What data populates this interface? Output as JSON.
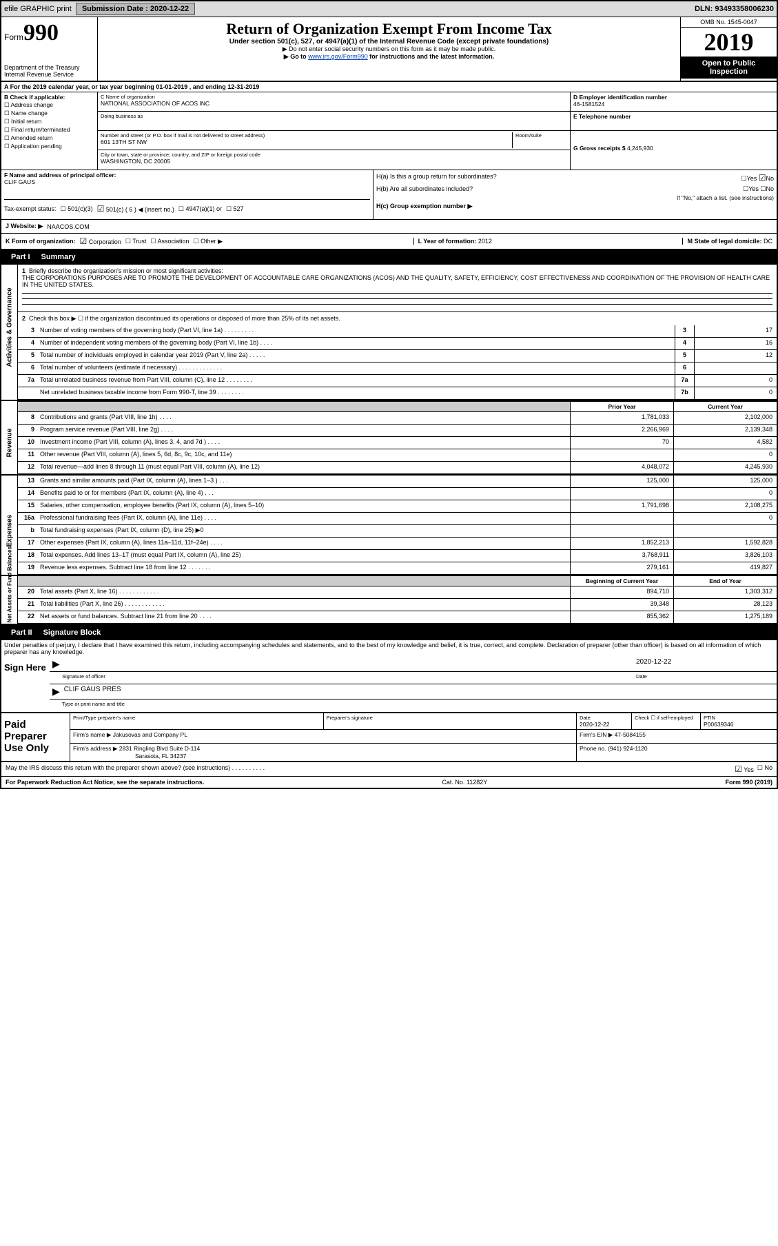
{
  "topbar": {
    "efile": "efile GRAPHIC print",
    "sub_label": "Submission Date : ",
    "sub_date": "2020-12-22",
    "dln_label": "DLN: ",
    "dln": "93493358006230"
  },
  "header": {
    "form_small": "Form",
    "form_num": "990",
    "dept1": "Department of the Treasury",
    "dept2": "Internal Revenue Service",
    "title": "Return of Organization Exempt From Income Tax",
    "sub1": "Under section 501(c), 527, or 4947(a)(1) of the Internal Revenue Code (except private foundations)",
    "sub2": "▶ Do not enter social security numbers on this form as it may be made public.",
    "sub3_pre": "▶ Go to ",
    "sub3_link": "www.irs.gov/Form990",
    "sub3_post": " for instructions and the latest information.",
    "omb": "OMB No. 1545-0047",
    "year": "2019",
    "inspect": "Open to Public Inspection"
  },
  "lineA": "A For the 2019 calendar year, or tax year beginning 01-01-2019   , and ending 12-31-2019",
  "colB": {
    "hdr": "B Check if applicable:",
    "items": [
      "Address change",
      "Name change",
      "Initial return",
      "Final return/terminated",
      "Amended return",
      "Application pending"
    ]
  },
  "orgC": {
    "lbl": "C Name of organization",
    "name": "NATIONAL ASSOCIATION OF ACOS INC",
    "dba_lbl": "Doing business as",
    "dba": "",
    "addr_lbl": "Number and street (or P.O. box if mail is not delivered to street address)",
    "room_lbl": "Room/suite",
    "addr": "601 13TH ST NW",
    "city_lbl": "City or town, state or province, country, and ZIP or foreign postal code",
    "city": "WASHINGTON, DC  20005"
  },
  "colD": {
    "lbl": "D Employer identification number",
    "ein": "46-1581524"
  },
  "colE": {
    "lbl": "E Telephone number",
    "val": ""
  },
  "colG": {
    "lbl": "G Gross receipts $ ",
    "val": "4,245,930"
  },
  "secF": {
    "lbl": "F  Name and address of principal officer:",
    "name": "CLIF GAUS"
  },
  "secH": {
    "ha": "H(a)  Is this a group return for subordinates?",
    "ha_yes": "Yes",
    "ha_no": "No",
    "ha_checked": "no",
    "hb": "H(b)  Are all subordinates included?",
    "hb_yes": "Yes",
    "hb_no": "No",
    "hb_note": "If \"No,\" attach a list. (see instructions)",
    "hc": "H(c)  Group exemption number ▶",
    "hc_val": ""
  },
  "taxI": {
    "lbl": "Tax-exempt status:",
    "o1": "501(c)(3)",
    "o2": "501(c) ( 6 ) ◀ (insert no.)",
    "o3": "4947(a)(1) or",
    "o4": "527",
    "checked": "o2"
  },
  "webJ": {
    "lbl": "J Website: ▶ ",
    "val": "NAACOS.COM"
  },
  "lineK": {
    "lbl": "K Form of organization:",
    "o1": "Corporation",
    "o2": "Trust",
    "o3": "Association",
    "o4": "Other ▶",
    "checked": "o1",
    "L": "L Year of formation: ",
    "L_val": "2012",
    "M": "M State of legal domicile: ",
    "M_val": "DC"
  },
  "part1": {
    "num": "Part I",
    "title": "Summary"
  },
  "q1": {
    "n": "1",
    "txt": "Briefly describe the organization's mission or most significant activities:",
    "body": "THE CORPORATIONS PURPOSES ARE TO PROMOTE THE DEVELOPMENT OF ACCOUNTABLE CARE ORGANIZATIONS (ACOS) AND THE QUALITY, SAFETY, EFFICIENCY, COST EFFECTIVENESS AND COORDINATION OF THE PROVISION OF HEALTH CARE IN THE UNITED STATES."
  },
  "q2": {
    "n": "2",
    "txt": "Check this box ▶ ☐ if the organization discontinued its operations or disposed of more than 25% of its net assets."
  },
  "rows_ag": [
    {
      "n": "3",
      "txt": "Number of voting members of the governing body (Part VI, line 1a)  .   .   .   .   .   .   .   .   .",
      "box": "3",
      "val": "17"
    },
    {
      "n": "4",
      "txt": "Number of independent voting members of the governing body (Part VI, line 1b)  .   .   .   .",
      "box": "4",
      "val": "16"
    },
    {
      "n": "5",
      "txt": "Total number of individuals employed in calendar year 2019 (Part V, line 2a)  .   .   .   .   .",
      "box": "5",
      "val": "12"
    },
    {
      "n": "6",
      "txt": "Total number of volunteers (estimate if necessary)   .   .   .   .   .   .   .   .   .   .   .   .   .",
      "box": "6",
      "val": ""
    },
    {
      "n": "7a",
      "txt": "Total unrelated business revenue from Part VIII, column (C), line 12  .   .   .   .   .   .   .   .",
      "box": "7a",
      "val": "0"
    },
    {
      "n": "",
      "txt": "Net unrelated business taxable income from Form 990-T, line 39   .   .   .   .   .   .   .   .",
      "box": "7b",
      "val": "0"
    }
  ],
  "fin_hdr": {
    "py": "Prior Year",
    "cy": "Current Year"
  },
  "rows_rev": [
    {
      "n": "8",
      "txt": "Contributions and grants (Part VIII, line 1h)   .   .   .   .",
      "py": "1,781,033",
      "cy": "2,102,000"
    },
    {
      "n": "9",
      "txt": "Program service revenue (Part VIII, line 2g)   .   .   .   .",
      "py": "2,266,969",
      "cy": "2,139,348"
    },
    {
      "n": "10",
      "txt": "Investment income (Part VIII, column (A), lines 3, 4, and 7d )   .   .   .   .",
      "py": "70",
      "cy": "4,582"
    },
    {
      "n": "11",
      "txt": "Other revenue (Part VIII, column (A), lines 5, 6d, 8c, 9c, 10c, and 11e)",
      "py": "",
      "cy": "0"
    },
    {
      "n": "12",
      "txt": "Total revenue—add lines 8 through 11 (must equal Part VIII, column (A), line 12)",
      "py": "4,048,072",
      "cy": "4,245,930"
    }
  ],
  "rows_exp": [
    {
      "n": "13",
      "txt": "Grants and similar amounts paid (Part IX, column (A), lines 1–3 )  .   .   .",
      "py": "125,000",
      "cy": "125,000"
    },
    {
      "n": "14",
      "txt": "Benefits paid to or for members (Part IX, column (A), line 4)   .   .   .",
      "py": "",
      "cy": "0"
    },
    {
      "n": "15",
      "txt": "Salaries, other compensation, employee benefits (Part IX, column (A), lines 5–10)",
      "py": "1,791,698",
      "cy": "2,108,275"
    },
    {
      "n": "16a",
      "txt": "Professional fundraising fees (Part IX, column (A), line 11e)  .   .   .   .",
      "py": "",
      "cy": "0"
    },
    {
      "n": "b",
      "txt": "Total fundraising expenses (Part IX, column (D), line 25) ▶0",
      "py": "",
      "cy": "",
      "gray": true
    },
    {
      "n": "17",
      "txt": "Other expenses (Part IX, column (A), lines 11a–11d, 11f–24e)  .   .   .   .",
      "py": "1,852,213",
      "cy": "1,592,828"
    },
    {
      "n": "18",
      "txt": "Total expenses. Add lines 13–17 (must equal Part IX, column (A), line 25)",
      "py": "3,768,911",
      "cy": "3,826,103"
    },
    {
      "n": "19",
      "txt": "Revenue less expenses. Subtract line 18 from line 12  .   .   .   .   .   .   .",
      "py": "279,161",
      "cy": "419,827"
    }
  ],
  "nab_hdr": {
    "py": "Beginning of Current Year",
    "cy": "End of Year"
  },
  "rows_nab": [
    {
      "n": "20",
      "txt": "Total assets (Part X, line 16)  .   .   .   .   .   .   .   .   .   .   .   .",
      "py": "894,710",
      "cy": "1,303,312"
    },
    {
      "n": "21",
      "txt": "Total liabilities (Part X, line 26)  .   .   .   .   .   .   .   .   .   .   .   .",
      "py": "39,348",
      "cy": "28,123"
    },
    {
      "n": "22",
      "txt": "Net assets or fund balances. Subtract line 21 from line 20   .   .   .   .",
      "py": "855,362",
      "cy": "1,275,189"
    }
  ],
  "part2": {
    "num": "Part II",
    "title": "Signature Block"
  },
  "penalties": "Under penalties of perjury, I declare that I have examined this return, including accompanying schedules and statements, and to the best of my knowledge and belief, it is true, correct, and complete. Declaration of preparer (other than officer) is based on all information of which preparer has any knowledge.",
  "sign": {
    "here": "Sign Here",
    "sig_lbl": "Signature of officer",
    "date_lbl": "Date",
    "date": "2020-12-22",
    "name": "CLIF GAUS PRES",
    "name_lbl": "Type or print name and title"
  },
  "prep": {
    "label": "Paid Preparer Use Only",
    "r1": {
      "c1_lbl": "Print/Type preparer's name",
      "c1": "",
      "c2_lbl": "Preparer's signature",
      "c2": "",
      "c3_lbl": "Date",
      "c3": "2020-12-22",
      "c4_lbl": "Check ☐ if self-employed",
      "c5_lbl": "PTIN",
      "c5": "P00639346"
    },
    "r2": {
      "lbl": "Firm's name    ▶ ",
      "val": "Jakusovas and Company PL",
      "ein_lbl": "Firm's EIN ▶ ",
      "ein": "47-5084155"
    },
    "r3": {
      "lbl": "Firm's address ▶ ",
      "val1": "2831 Ringling Blvd Suite D-114",
      "val2": "Sarasota, FL  34237",
      "ph_lbl": "Phone no. ",
      "ph": "(941) 924-1120"
    }
  },
  "discuss": {
    "txt": "May the IRS discuss this return with the preparer shown above? (see instructions)   .   .   .   .   .   .   .   .   .   .",
    "yes": "Yes",
    "no": "No",
    "checked": "yes"
  },
  "footer": {
    "left": "For Paperwork Reduction Act Notice, see the separate instructions.",
    "mid": "Cat. No. 11282Y",
    "right": "Form 990 (2019)"
  },
  "vert": {
    "ag": "Activities & Governance",
    "rev": "Revenue",
    "exp": "Expenses",
    "nab": "Net Assets or Fund Balances"
  }
}
